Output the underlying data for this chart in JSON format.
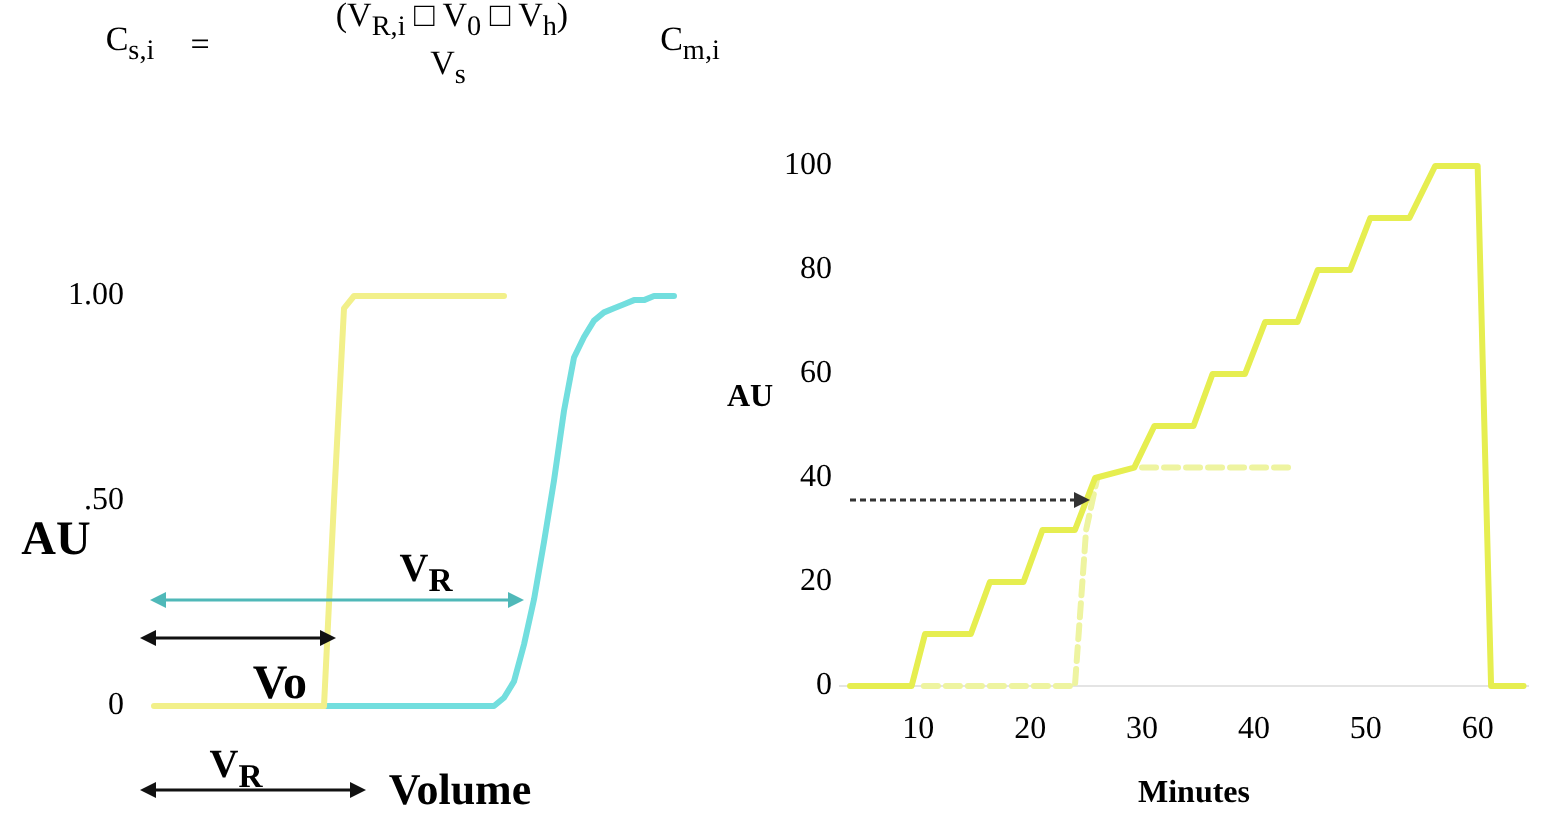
{
  "chart_data": [
    {
      "type": "other",
      "annotations": [
        "C$_{s,i}$",
        "=",
        "(V$_{R,i}$ □ V$_{0}$ □ V$_{h}$)",
        "V$_{s}$",
        "C$_{m,i}$"
      ]
    },
    {
      "type": "line",
      "ylabel": "AU",
      "xlabel": "Volume",
      "tick_labels": "y",
      "legend": false,
      "categories": [
        null,
        null,
        null,
        null,
        null,
        null,
        null,
        null,
        null,
        null,
        null,
        null,
        null,
        null,
        null,
        null,
        null,
        null,
        null,
        null,
        null,
        null,
        null,
        null,
        null,
        null,
        null,
        null,
        null,
        null,
        null,
        null,
        null,
        null,
        null,
        null,
        null,
        null,
        null,
        null,
        null,
        null,
        null,
        null,
        null,
        null,
        null,
        null,
        null,
        null,
        null,
        null,
        null
      ],
      "ylim": [
        0,
        1
      ],
      "yticks": [
        0,
        {
          "value": 0.5,
          "label": ".50"
        },
        {
          "value": 1,
          "label": "1.00"
        }
      ],
      "series": [
        {
          "color": "#f2f08a",
          "values": [
            0,
            0,
            0,
            0,
            0,
            0,
            0,
            0,
            0,
            0,
            0,
            0,
            0,
            0,
            0,
            0,
            0,
            0,
            0.5,
            0.97,
            1,
            1,
            1,
            1,
            1,
            1,
            1,
            1,
            1,
            1,
            1,
            1,
            1,
            1,
            1,
            1,
            null,
            null,
            null,
            null,
            null,
            null,
            null,
            null,
            null,
            null,
            null,
            null,
            null,
            null,
            null,
            null,
            null
          ]
        },
        {
          "color": "#72dede",
          "values": [
            null,
            null,
            null,
            null,
            null,
            null,
            null,
            null,
            null,
            null,
            null,
            null,
            null,
            null,
            null,
            null,
            0,
            0,
            0,
            0,
            0,
            0,
            0,
            0,
            0,
            0,
            0,
            0,
            0,
            0,
            0,
            0,
            0,
            0,
            0,
            0.02,
            0.06,
            0.15,
            0.26,
            0.4,
            0.55,
            0.72,
            0.85,
            0.9,
            0.94,
            0.96,
            0.97,
            0.98,
            0.99,
            0.99,
            1,
            1,
            1
          ]
        }
      ],
      "annotations": [
        "V$_{R}$",
        "Vo",
        "V$_{R}$"
      ]
    },
    {
      "type": "line",
      "ylabel": "AU",
      "xlabel": "Minutes",
      "legend": false,
      "xlim": [
        3,
        64.5
      ],
      "xticks": [
        10,
        20,
        30,
        40,
        50,
        60
      ],
      "ylim": [
        0,
        100
      ],
      "yticks": [
        0,
        20,
        40,
        60,
        80,
        100
      ],
      "series": [
        {
          "color": "#e6ee50",
          "x": [
            3.9,
            9.4,
            10.6,
            14.7,
            16.4,
            19.4,
            21.1,
            24,
            25.8,
            29.3,
            31.1,
            34.6,
            36.3,
            39.2,
            41,
            43.9,
            45.7,
            48.6,
            50.4,
            53.9,
            56.2,
            60,
            61.2,
            64.1
          ],
          "values": [
            0,
            0,
            10,
            10,
            20,
            20,
            30,
            30,
            40,
            42,
            50,
            50,
            60,
            60,
            70,
            70,
            80,
            80,
            90,
            90,
            100,
            100,
            0,
            0
          ]
        },
        {
          "color": "#eef4a0",
          "line_style": "dashed",
          "x": [
            10.5,
            24,
            25,
            26,
            28,
            30,
            43.5
          ],
          "values": [
            0,
            0,
            30,
            40,
            null,
            42,
            42
          ]
        }
      ]
    }
  ]
}
